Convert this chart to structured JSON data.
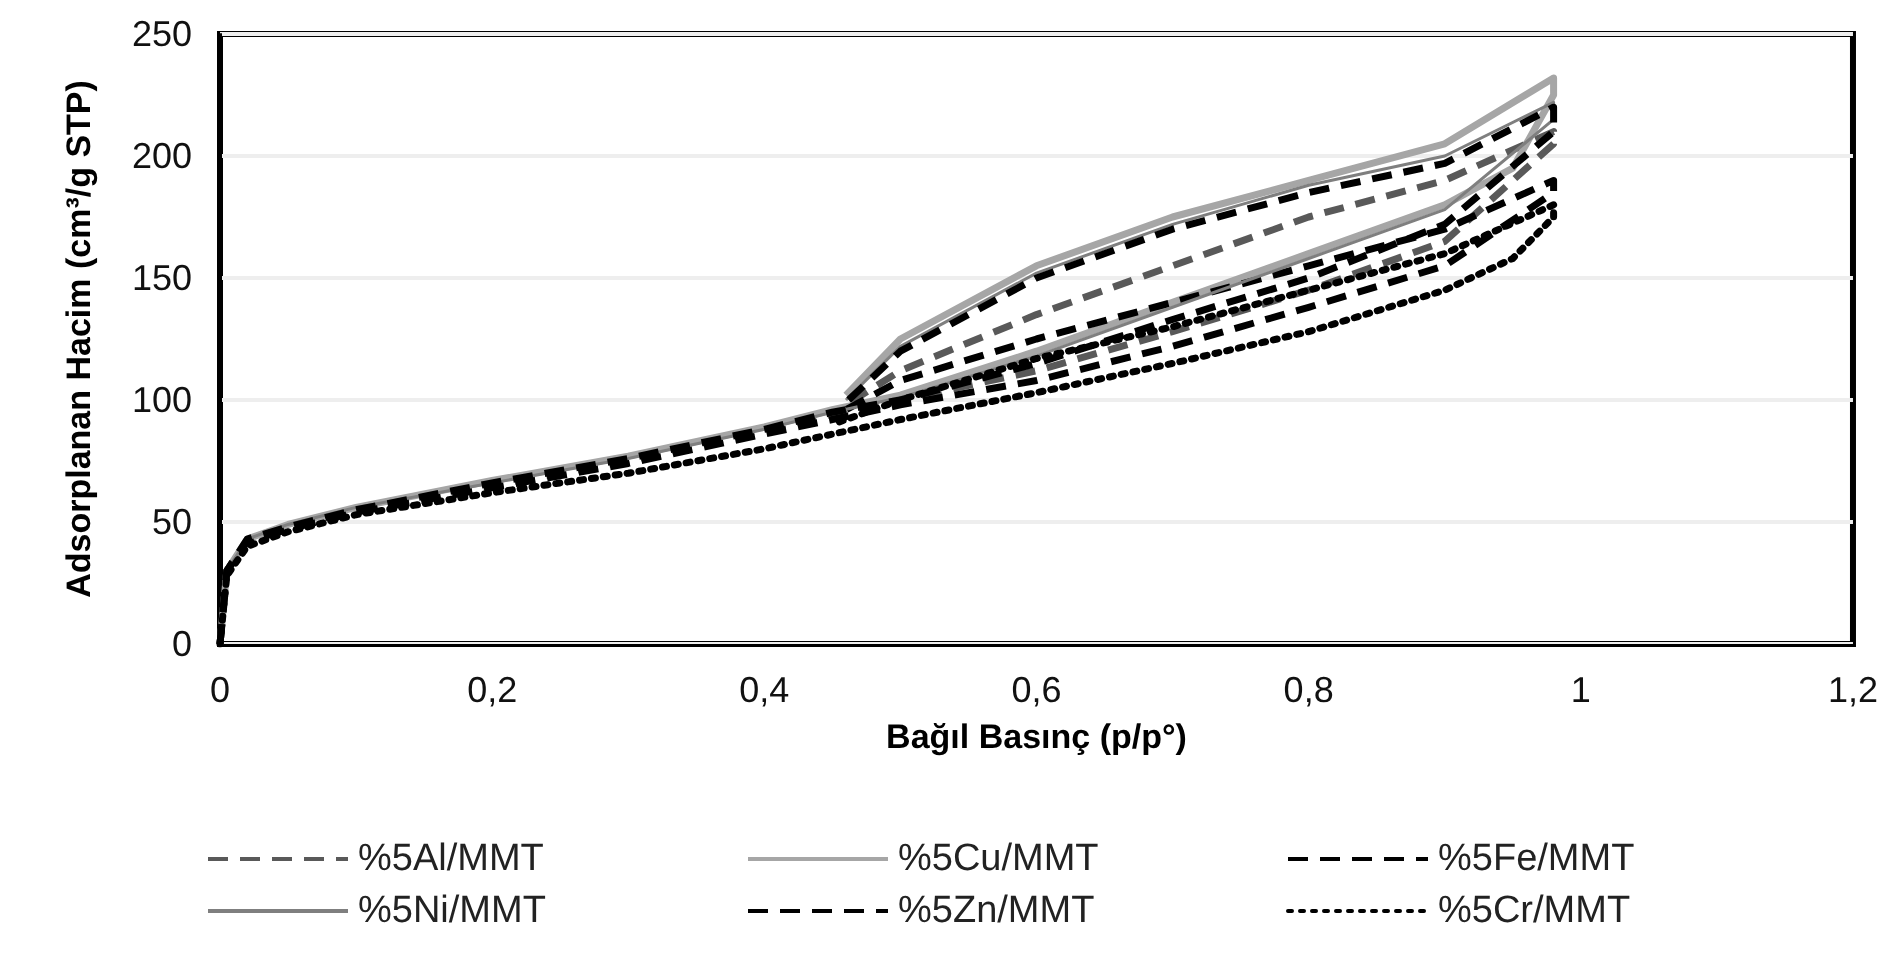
{
  "chart_data": {
    "type": "line",
    "xlabel": "Bağıl Basınç (p/p°)",
    "ylabel": "Adsorplanan Hacim (cm³/g STP)",
    "xlim": [
      0,
      1.2
    ],
    "xticks": [
      0,
      {
        "value": 0.2,
        "label": "0,2"
      },
      {
        "value": 0.4,
        "label": "0,4"
      },
      {
        "value": 0.6,
        "label": "0,6"
      },
      {
        "value": 0.8,
        "label": "0,8"
      },
      1,
      {
        "value": 1.2,
        "label": "1,2"
      }
    ],
    "ylim": [
      0,
      250
    ],
    "yticks": [
      0,
      50,
      100,
      150,
      200,
      250
    ],
    "grid": "y",
    "legend": "bottom",
    "marker": "none",
    "series": [
      {
        "name": "%5Al/MMT",
        "color": "#595959",
        "line_style": "dashed",
        "x": [
          0,
          0.005,
          0.02,
          0.05,
          0.1,
          0.2,
          0.3,
          0.4,
          0.45,
          0.5,
          0.6,
          0.7,
          0.8,
          0.9,
          0.98,
          0.98,
          0.9,
          0.8,
          0.7,
          0.6,
          0.5,
          0.46
        ],
        "values": [
          0,
          30,
          42,
          48,
          55,
          65,
          75,
          88,
          94,
          100,
          112,
          128,
          145,
          165,
          205,
          210,
          190,
          175,
          155,
          135,
          112,
          98
        ]
      },
      {
        "name": "%5Cu/MMT",
        "color": "#a6a6a6",
        "line_style": "solid",
        "x": [
          0,
          0.005,
          0.02,
          0.05,
          0.1,
          0.2,
          0.3,
          0.4,
          0.45,
          0.5,
          0.6,
          0.7,
          0.8,
          0.9,
          0.95,
          0.98,
          0.98,
          0.9,
          0.8,
          0.7,
          0.6,
          0.5,
          0.46
        ],
        "values": [
          0,
          30,
          43,
          49,
          56,
          67,
          77,
          89,
          96,
          102,
          120,
          140,
          160,
          180,
          195,
          225,
          232,
          205,
          190,
          175,
          155,
          125,
          102
        ]
      },
      {
        "name": "%5Fe/MMT",
        "color": "#000000",
        "line_style": "dashed",
        "x": [
          0,
          0.005,
          0.02,
          0.05,
          0.1,
          0.2,
          0.3,
          0.4,
          0.45,
          0.5,
          0.6,
          0.7,
          0.8,
          0.9,
          0.98,
          0.98,
          0.9,
          0.8,
          0.7,
          0.6,
          0.5,
          0.46
        ],
        "values": [
          0,
          30,
          42,
          47,
          54,
          64,
          74,
          86,
          92,
          98,
          108,
          122,
          138,
          155,
          185,
          190,
          170,
          155,
          140,
          125,
          108,
          96
        ]
      },
      {
        "name": "%5Ni/MMT",
        "color": "#7f7f7f",
        "line_style": "solid",
        "x": [
          0,
          0.005,
          0.02,
          0.05,
          0.1,
          0.2,
          0.3,
          0.4,
          0.45,
          0.5,
          0.6,
          0.7,
          0.8,
          0.9,
          0.98,
          0.98,
          0.9,
          0.8,
          0.7,
          0.6,
          0.5,
          0.46
        ],
        "values": [
          0,
          30,
          43,
          49,
          56,
          66,
          76,
          88,
          95,
          101,
          118,
          138,
          158,
          178,
          215,
          222,
          200,
          188,
          172,
          152,
          122,
          100
        ]
      },
      {
        "name": "%5Zn/MMT",
        "color": "#000000",
        "line_style": "dashed",
        "x": [
          0,
          0.005,
          0.02,
          0.05,
          0.1,
          0.2,
          0.3,
          0.4,
          0.45,
          0.5,
          0.6,
          0.7,
          0.8,
          0.9,
          0.98,
          0.98,
          0.9,
          0.8,
          0.7,
          0.6,
          0.5,
          0.46
        ],
        "values": [
          0,
          30,
          43,
          48,
          55,
          66,
          76,
          88,
          95,
          100,
          115,
          133,
          150,
          172,
          210,
          220,
          197,
          185,
          170,
          150,
          120,
          99
        ]
      },
      {
        "name": "%5Cr/MMT",
        "color": "#000000",
        "line_style": "dotted",
        "x": [
          0,
          0.005,
          0.02,
          0.05,
          0.1,
          0.2,
          0.3,
          0.4,
          0.45,
          0.5,
          0.6,
          0.7,
          0.8,
          0.9,
          0.95,
          0.98,
          0.98,
          0.9,
          0.8,
          0.7,
          0.6,
          0.5,
          0.45
        ],
        "values": [
          0,
          28,
          40,
          46,
          53,
          62,
          70,
          80,
          86,
          92,
          103,
          115,
          128,
          145,
          158,
          175,
          180,
          160,
          145,
          130,
          117,
          100,
          90
        ]
      }
    ]
  }
}
